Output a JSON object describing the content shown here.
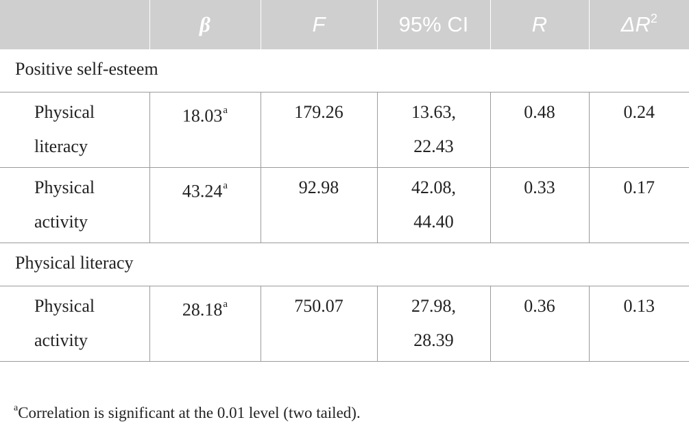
{
  "table": {
    "headers": [
      "",
      "β",
      "F",
      "95% CI",
      "R",
      "ΔR"
    ],
    "header_superscript_last": "2",
    "sections": [
      {
        "title": "Positive self-esteem",
        "rows": [
          {
            "label_line1": "Physical",
            "label_line2": "literacy",
            "beta": "18.03",
            "beta_note": "a",
            "f": "179.26",
            "ci_line1": "13.63,",
            "ci_line2": "22.43",
            "r": "0.48",
            "delta_r2": "0.24"
          },
          {
            "label_line1": "Physical",
            "label_line2": "activity",
            "beta": "43.24",
            "beta_note": "a",
            "f": "92.98",
            "ci_line1": "42.08,",
            "ci_line2": "44.40",
            "r": "0.33",
            "delta_r2": "0.17"
          }
        ]
      },
      {
        "title": "Physical literacy",
        "rows": [
          {
            "label_line1": "Physical",
            "label_line2": "activity",
            "beta": "28.18",
            "beta_note": "a",
            "f": "750.07",
            "ci_line1": "27.98,",
            "ci_line2": "28.39",
            "r": "0.36",
            "delta_r2": "0.13"
          }
        ]
      }
    ]
  },
  "footnote": {
    "marker": "a",
    "text": "Correlation is significant at the 0.01 level (two tailed)."
  },
  "colors": {
    "header_background": "#cfcfcf",
    "header_text": "#ffffff",
    "grid_line": "#9a9a9a",
    "body_text": "#222222"
  }
}
